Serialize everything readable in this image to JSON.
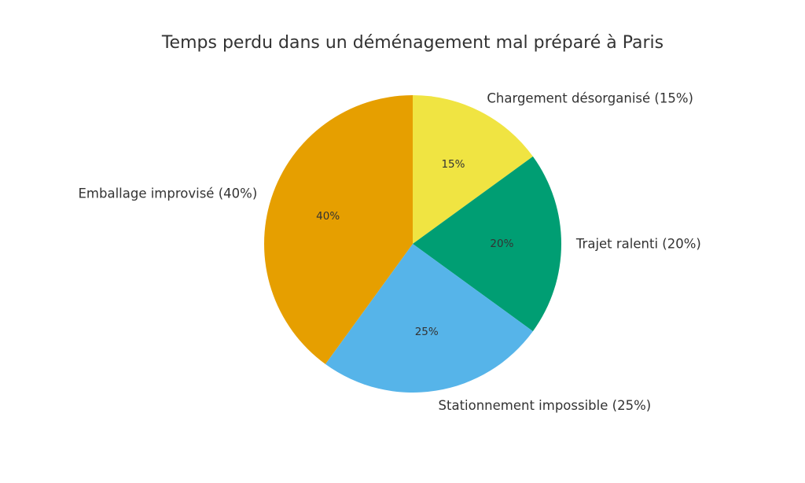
{
  "chart_data": {
    "type": "pie",
    "title": "Temps perdu dans un déménagement mal préparé à Paris",
    "start_angle_deg": 90,
    "direction": "clockwise",
    "slices": [
      {
        "label": "Chargement désorganisé",
        "value": 15,
        "pct_label": "15%",
        "outer_label": "Chargement désorganisé (15%)",
        "color": "#F0E442"
      },
      {
        "label": "Trajet ralenti",
        "value": 20,
        "pct_label": "20%",
        "outer_label": "Trajet ralenti (20%)",
        "color": "#009E73"
      },
      {
        "label": "Stationnement impossible",
        "value": 25,
        "pct_label": "25%",
        "outer_label": "Stationnement impossible (25%)",
        "color": "#56B4E9"
      },
      {
        "label": "Emballage improvisé",
        "value": 40,
        "pct_label": "40%",
        "outer_label": "Emballage improvisé (40%)",
        "color": "#E69F00"
      }
    ]
  }
}
